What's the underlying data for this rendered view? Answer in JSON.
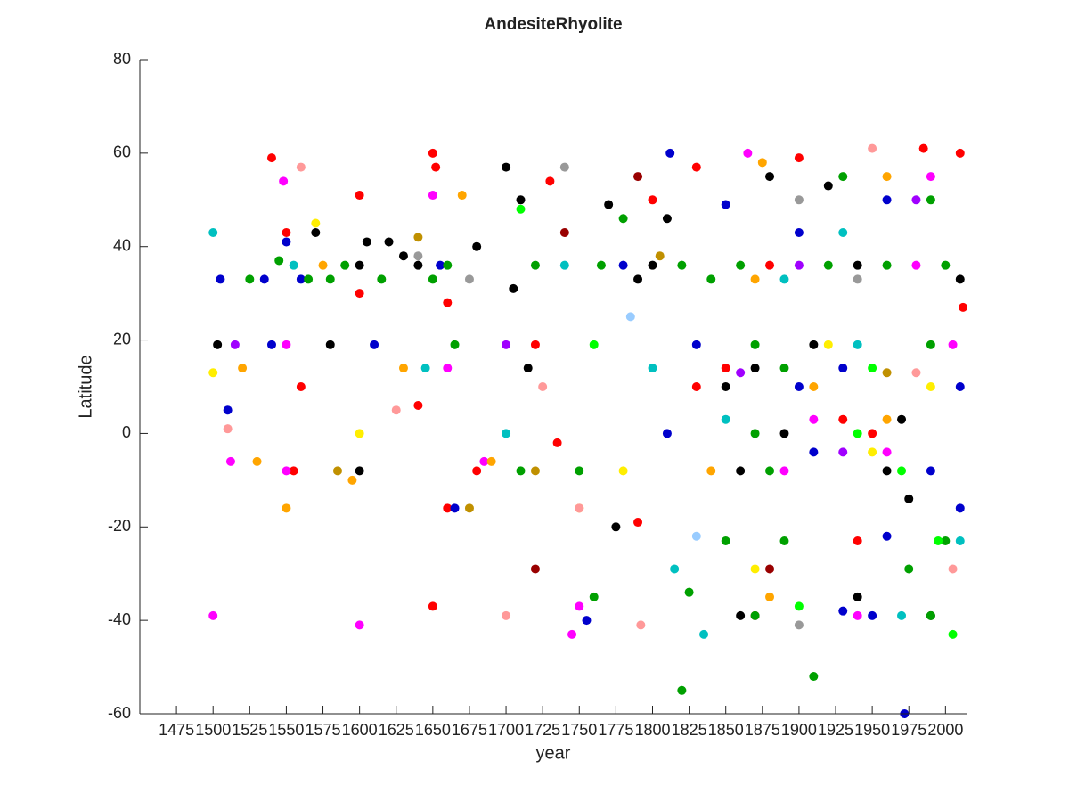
{
  "chart_data": {
    "type": "scatter",
    "title": "AndesiteRhyolite",
    "x_label": "year",
    "y_label": "Latitude",
    "xlim": [
      1450,
      2015
    ],
    "ylim": [
      -60,
      80
    ],
    "xticks": [
      1475,
      1500,
      1525,
      1550,
      1575,
      1600,
      1625,
      1650,
      1675,
      1700,
      1725,
      1750,
      1775,
      1800,
      1825,
      1850,
      1875,
      1900,
      1925,
      1950,
      1975,
      2000
    ],
    "yticks": [
      -60,
      -40,
      -20,
      0,
      20,
      40,
      60,
      80
    ],
    "grid": false,
    "series": [
      {
        "color": "#ff0000",
        "x": [
          1540,
          1550,
          1555,
          1560,
          1600,
          1600,
          1640,
          1650,
          1652,
          1660,
          1660,
          1730,
          1735,
          1790,
          1800,
          1830,
          1900,
          1985,
          2010,
          2012,
          1880,
          1720,
          1850,
          1950,
          1680,
          1870,
          1940,
          1650,
          1830,
          1930
        ],
        "values": [
          59,
          43,
          -8,
          10,
          51,
          30,
          6,
          60,
          57,
          -16,
          28,
          54,
          -2,
          -19,
          50,
          57,
          59,
          61,
          60,
          27,
          36,
          19,
          14,
          0,
          -8,
          -39,
          -23,
          -37,
          10,
          3
        ]
      },
      {
        "color": "#000000",
        "x": [
          1503,
          1570,
          1580,
          1600,
          1605,
          1620,
          1630,
          1680,
          1700,
          1705,
          1710,
          1715,
          1770,
          1775,
          1810,
          1860,
          1920,
          1600,
          1640,
          1790,
          1800,
          1940,
          1910,
          1870,
          1850,
          1890,
          1970,
          1860,
          1960,
          1940,
          1990,
          1880,
          2010,
          1975
        ],
        "values": [
          19,
          43,
          19,
          -8,
          41,
          41,
          38,
          40,
          57,
          31,
          50,
          14,
          49,
          -20,
          46,
          -39,
          53,
          36,
          36,
          33,
          36,
          36,
          19,
          14,
          10,
          0,
          3,
          -8,
          -8,
          -35,
          -39,
          55,
          33,
          -14
        ]
      },
      {
        "color": "#0000cc",
        "x": [
          1505,
          1510,
          1535,
          1540,
          1550,
          1610,
          1655,
          1665,
          1755,
          1780,
          1812,
          1850,
          1930,
          1960,
          1972,
          1560,
          1830,
          1930,
          1900,
          1810,
          1990,
          1910,
          1950,
          1960,
          2010,
          1900,
          2010
        ],
        "values": [
          33,
          5,
          33,
          19,
          41,
          19,
          36,
          -16,
          -40,
          36,
          60,
          49,
          -38,
          -22,
          -60,
          33,
          19,
          14,
          10,
          0,
          -8,
          -4,
          -39,
          50,
          -16,
          43,
          10
        ]
      },
      {
        "color": "#00a000",
        "x": [
          1525,
          1545,
          1565,
          1580,
          1590,
          1615,
          1660,
          1665,
          1710,
          1720,
          1760,
          1765,
          1780,
          1820,
          1825,
          1840,
          1850,
          1890,
          1910,
          1975,
          1820,
          1860,
          1920,
          1960,
          2000,
          1650,
          1870,
          1990,
          1890,
          1870,
          1750,
          1880,
          1870,
          1990,
          1930,
          1990,
          2000
        ],
        "values": [
          33,
          37,
          33,
          33,
          36,
          33,
          36,
          19,
          -8,
          36,
          -35,
          36,
          46,
          -55,
          -34,
          33,
          -23,
          -23,
          -52,
          -29,
          36,
          36,
          36,
          36,
          36,
          33,
          19,
          19,
          14,
          0,
          -8,
          -8,
          -39,
          -39,
          55,
          50,
          -23
        ]
      },
      {
        "color": "#ff00ff",
        "x": [
          1500,
          1512,
          1548,
          1550,
          1600,
          1650,
          1685,
          1745,
          1750,
          1865,
          1980,
          1550,
          1660,
          1910,
          1960,
          1940,
          1990,
          1890,
          2005
        ],
        "values": [
          -39,
          -6,
          54,
          -8,
          -41,
          51,
          -6,
          -43,
          -37,
          60,
          36,
          19,
          14,
          3,
          -4,
          -39,
          55,
          -8,
          19
        ]
      },
      {
        "color": "#00c0c0",
        "x": [
          1500,
          1555,
          1645,
          1740,
          1815,
          1835,
          1890,
          1940,
          1850,
          1970,
          1930,
          2010,
          1800,
          1700
        ],
        "values": [
          43,
          36,
          14,
          36,
          -29,
          -43,
          33,
          19,
          3,
          -39,
          43,
          -23,
          14,
          0
        ]
      },
      {
        "color": "#ffa500",
        "x": [
          1520,
          1530,
          1550,
          1575,
          1595,
          1670,
          1690,
          1750,
          1875,
          1870,
          1910,
          1960,
          1840,
          1880,
          1960,
          1630
        ],
        "values": [
          14,
          -6,
          -16,
          36,
          -10,
          51,
          -6,
          -16,
          58,
          33,
          10,
          3,
          -8,
          -35,
          55,
          14
        ]
      },
      {
        "color": "#ffee00",
        "x": [
          1500,
          1570,
          1870,
          1920,
          1990,
          1780,
          1950,
          1600
        ],
        "values": [
          13,
          45,
          -29,
          19,
          10,
          -8,
          -4,
          0
        ]
      },
      {
        "color": "#00ff00",
        "x": [
          1710,
          1995,
          2005,
          1940,
          1970,
          1900,
          1950,
          1760
        ],
        "values": [
          48,
          -23,
          -43,
          0,
          -8,
          -37,
          14,
          19
        ]
      },
      {
        "color": "#ff9999",
        "x": [
          1560,
          1625,
          1700,
          1725,
          1750,
          1792,
          1950,
          1510,
          1980,
          2005
        ],
        "values": [
          57,
          5,
          -39,
          10,
          -16,
          -41,
          61,
          1,
          13,
          -29
        ]
      },
      {
        "color": "#999999",
        "x": [
          1740,
          1675,
          1900,
          1940,
          1900,
          1640
        ],
        "values": [
          57,
          33,
          -41,
          33,
          50,
          38
        ]
      },
      {
        "color": "#a000ff",
        "x": [
          1515,
          1700,
          1900,
          1930,
          1860,
          1980
        ],
        "values": [
          19,
          19,
          36,
          -4,
          13,
          50
        ]
      },
      {
        "color": "#c09000",
        "x": [
          1585,
          1640,
          1675,
          1805,
          1720,
          1960
        ],
        "values": [
          -8,
          42,
          -16,
          38,
          -8,
          13
        ]
      },
      {
        "color": "#990000",
        "x": [
          1720,
          1740,
          1790,
          1880
        ],
        "values": [
          -29,
          43,
          55,
          -29
        ]
      },
      {
        "color": "#99ccff",
        "x": [
          1785,
          1830
        ],
        "values": [
          25,
          -22
        ]
      }
    ]
  }
}
